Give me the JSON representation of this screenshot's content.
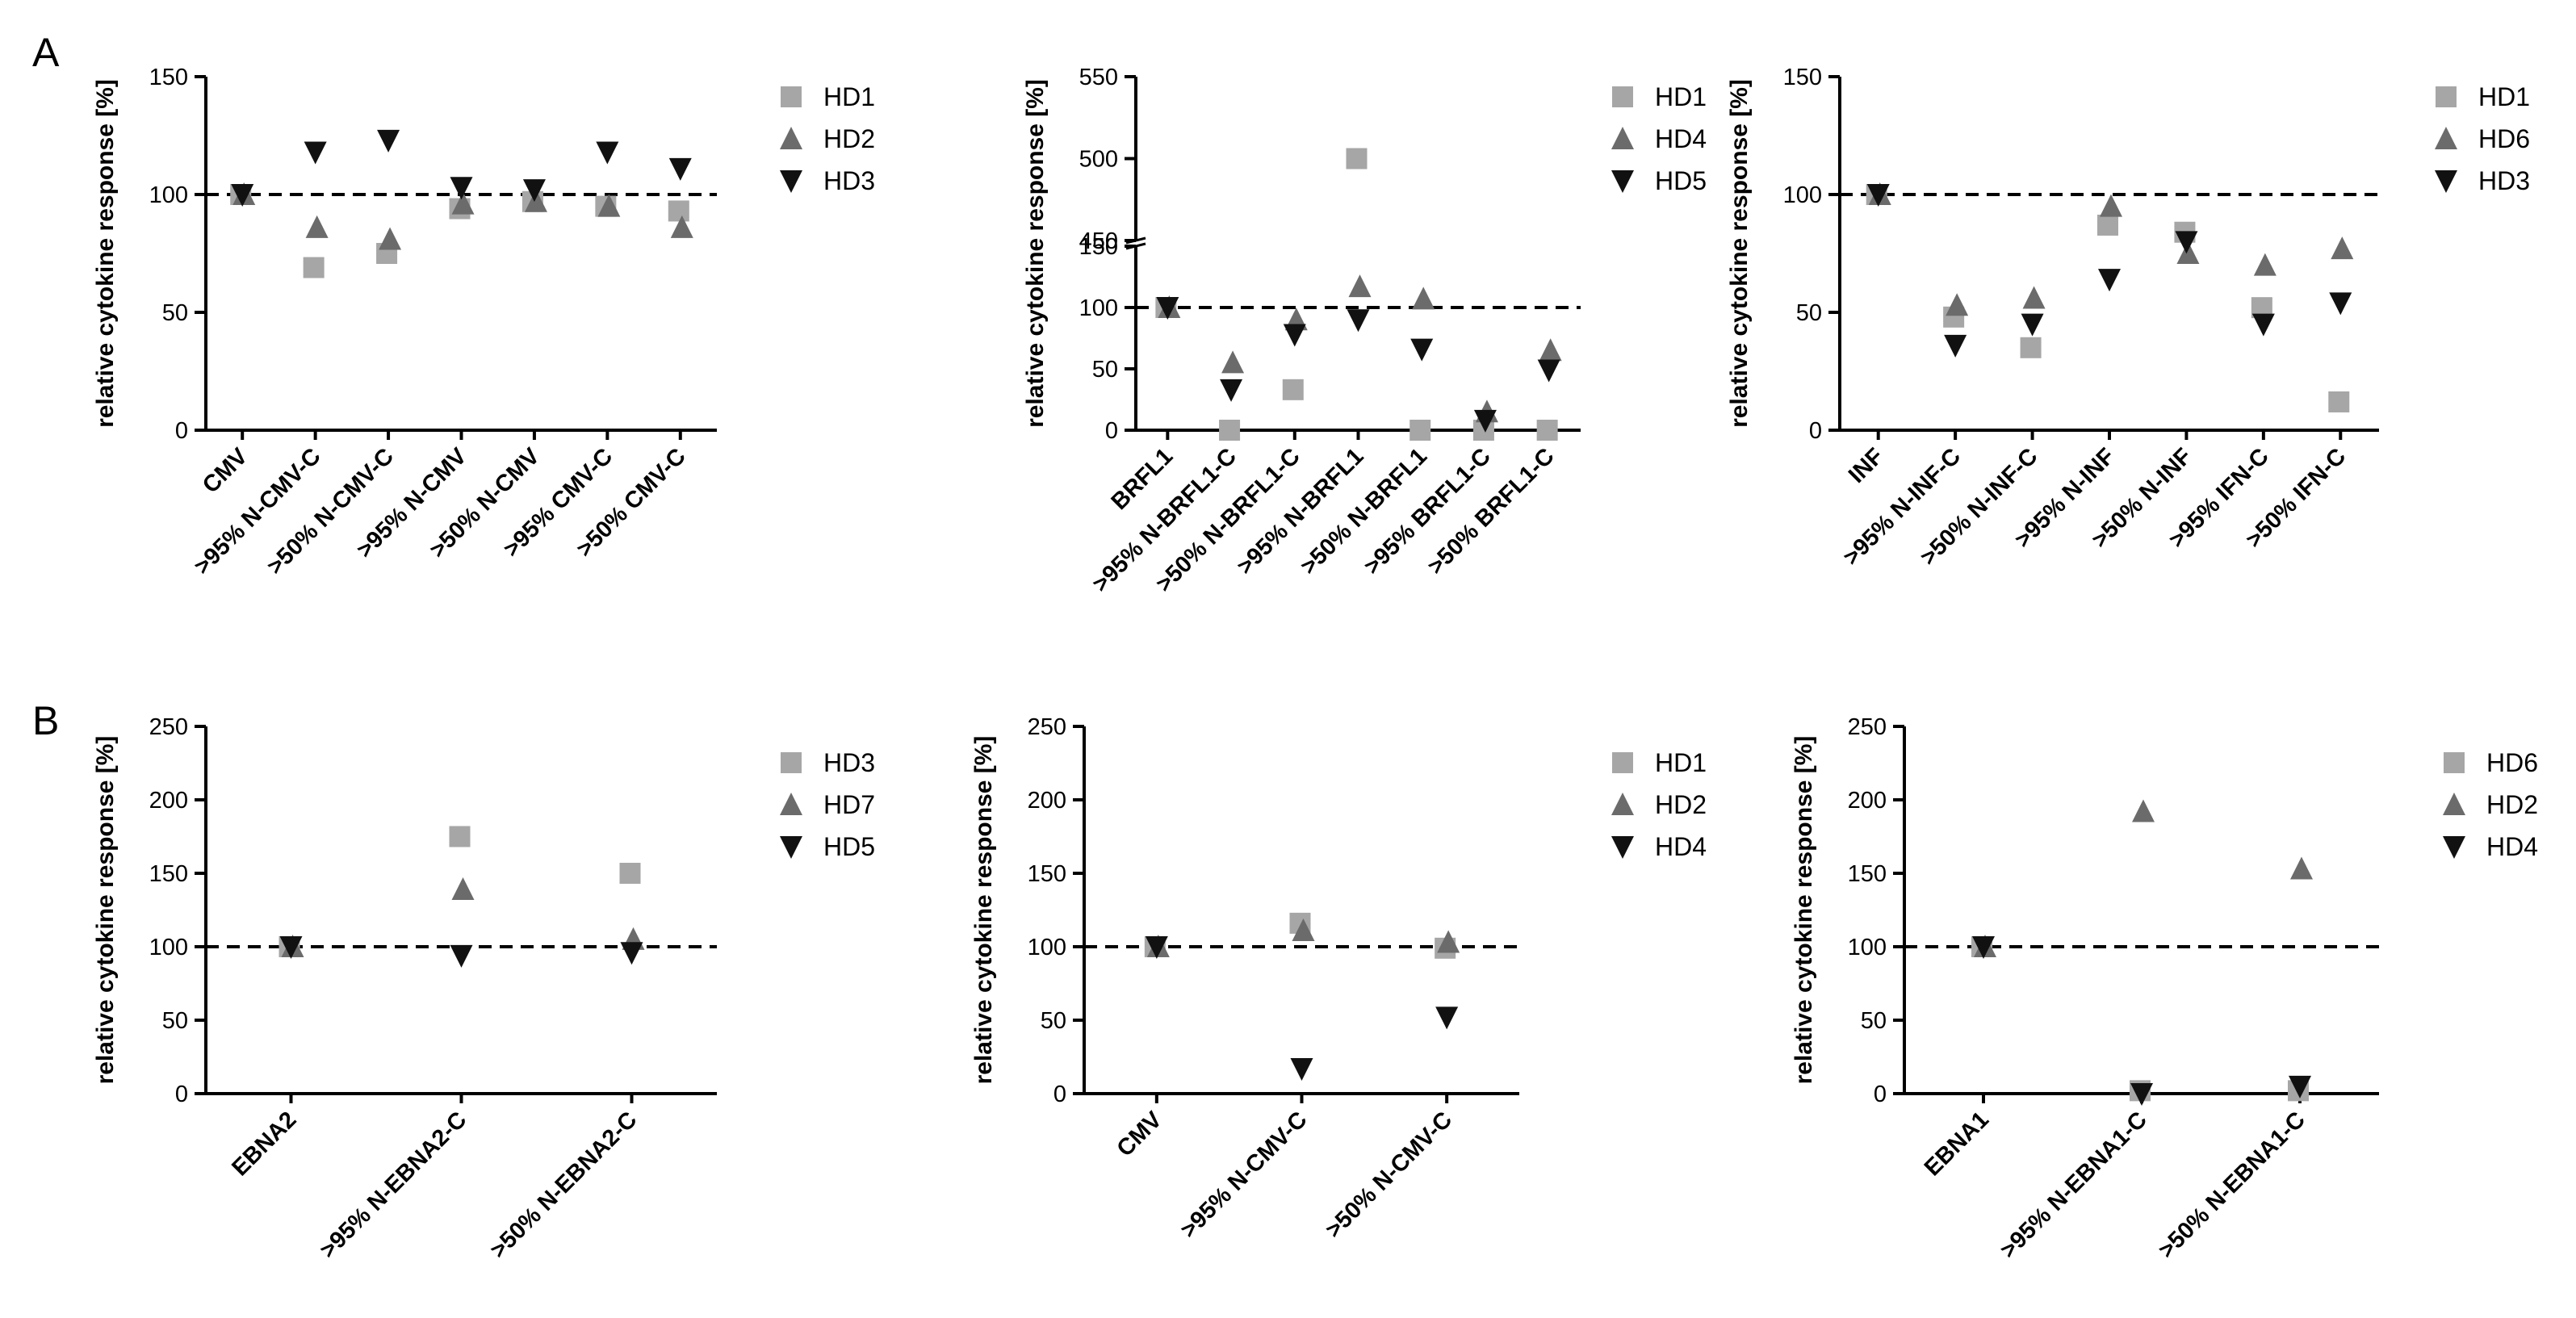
{
  "panel_labels": [
    "A",
    "B"
  ],
  "colors": {
    "light_gray": "#a6a6a6",
    "mid_gray": "#6b6b6b",
    "black": "#111111"
  },
  "chart_data": [
    {
      "type": "scatter",
      "panel": "A",
      "ylabel": "relative cytokine response [%]",
      "ylim": [
        0,
        150
      ],
      "yticks": [
        0,
        50,
        100,
        150
      ],
      "reference_line": 100,
      "categories": [
        "CMV",
        ">95% N-CMV-C",
        ">50% N-CMV-C",
        ">95% N-CMV",
        ">50% N-CMV",
        ">95% CMV-C",
        ">50% CMV-C"
      ],
      "series": [
        {
          "name": "HD1",
          "marker": "square",
          "color": "#a6a6a6",
          "values": [
            100,
            69,
            75,
            94,
            97,
            95,
            93
          ]
        },
        {
          "name": "HD2",
          "marker": "triangle-up",
          "color": "#6b6b6b",
          "values": [
            100,
            86,
            81,
            96,
            97,
            95,
            86
          ]
        },
        {
          "name": "HD3",
          "marker": "triangle-down",
          "color": "#111111",
          "values": [
            100,
            118,
            123,
            103,
            102,
            118,
            111
          ]
        }
      ]
    },
    {
      "type": "scatter",
      "panel": "A",
      "ylabel": "relative cytokine response [%]",
      "ylim": [
        0,
        550
      ],
      "broken_axis": {
        "lower": [
          0,
          150
        ],
        "upper": [
          450,
          550
        ]
      },
      "yticks_lower": [
        0,
        50,
        100,
        150
      ],
      "yticks_upper": [
        450,
        500,
        550
      ],
      "reference_line": 100,
      "categories": [
        "BRFL1",
        ">95% N-BRFL1-C",
        ">50% N-BRFL1-C",
        ">95% N-BRFL1",
        ">50% N-BRFL1",
        ">95% BRFL1-C",
        ">50% BRFL1-C"
      ],
      "series": [
        {
          "name": "HD1",
          "marker": "square",
          "color": "#a6a6a6",
          "values": [
            100,
            0,
            33,
            500,
            0,
            0,
            0
          ]
        },
        {
          "name": "HD4",
          "marker": "triangle-up",
          "color": "#6b6b6b",
          "values": [
            100,
            55,
            90,
            117,
            107,
            15,
            65
          ]
        },
        {
          "name": "HD5",
          "marker": "triangle-down",
          "color": "#111111",
          "values": [
            100,
            33,
            78,
            90,
            66,
            8,
            49
          ]
        }
      ]
    },
    {
      "type": "scatter",
      "panel": "A",
      "ylabel": "relative cytokine response [%]",
      "ylim": [
        0,
        150
      ],
      "yticks": [
        0,
        50,
        100,
        150
      ],
      "reference_line": 100,
      "categories": [
        "INF",
        ">95% N-INF-C",
        ">50% N-INF-C",
        ">95% N-INF",
        ">50% N-INF",
        ">95% IFN-C",
        ">50% IFN-C"
      ],
      "series": [
        {
          "name": "HD1",
          "marker": "square",
          "color": "#a6a6a6",
          "values": [
            100,
            48,
            35,
            87,
            84,
            52,
            12
          ]
        },
        {
          "name": "HD6",
          "marker": "triangle-up",
          "color": "#6b6b6b",
          "values": [
            100,
            53,
            56,
            95,
            75,
            70,
            77
          ]
        },
        {
          "name": "HD3",
          "marker": "triangle-down",
          "color": "#111111",
          "values": [
            100,
            36,
            45,
            64,
            80,
            45,
            54
          ]
        }
      ]
    },
    {
      "type": "scatter",
      "panel": "B",
      "ylabel": "relative cytokine response [%]",
      "ylim": [
        0,
        250
      ],
      "yticks": [
        0,
        50,
        100,
        150,
        200,
        250
      ],
      "reference_line": 100,
      "categories": [
        "EBNA2",
        ">95% N-EBNA2-C",
        ">50% N-EBNA2-C"
      ],
      "series": [
        {
          "name": "HD3",
          "marker": "square",
          "color": "#a6a6a6",
          "values": [
            100,
            175,
            150
          ]
        },
        {
          "name": "HD7",
          "marker": "triangle-up",
          "color": "#6b6b6b",
          "values": [
            100,
            139,
            105
          ]
        },
        {
          "name": "HD5",
          "marker": "triangle-down",
          "color": "#111111",
          "values": [
            100,
            94,
            96
          ]
        }
      ]
    },
    {
      "type": "scatter",
      "panel": "B",
      "ylabel": "relative cytokine response [%]",
      "ylim": [
        0,
        250
      ],
      "yticks": [
        0,
        50,
        100,
        150,
        200,
        250
      ],
      "reference_line": 100,
      "categories": [
        "CMV",
        ">95% N-CMV-C",
        ">50% N-CMV-C"
      ],
      "series": [
        {
          "name": "HD1",
          "marker": "square",
          "color": "#a6a6a6",
          "values": [
            100,
            116,
            99
          ]
        },
        {
          "name": "HD2",
          "marker": "triangle-up",
          "color": "#6b6b6b",
          "values": [
            100,
            111,
            103
          ]
        },
        {
          "name": "HD4",
          "marker": "triangle-down",
          "color": "#111111",
          "values": [
            100,
            17,
            52
          ]
        }
      ]
    },
    {
      "type": "scatter",
      "panel": "B",
      "ylabel": "relative cytokine response [%]",
      "ylim": [
        0,
        250
      ],
      "yticks": [
        0,
        50,
        100,
        150,
        200,
        250
      ],
      "reference_line": 100,
      "categories": [
        "EBNA1",
        ">95% N-EBNA1-C",
        ">50% N-EBNA1-C"
      ],
      "series": [
        {
          "name": "HD6",
          "marker": "square",
          "color": "#a6a6a6",
          "values": [
            100,
            2,
            2
          ]
        },
        {
          "name": "HD2",
          "marker": "triangle-up",
          "color": "#6b6b6b",
          "values": [
            100,
            192,
            153
          ]
        },
        {
          "name": "HD4",
          "marker": "triangle-down",
          "color": "#111111",
          "values": [
            100,
            0,
            5
          ]
        }
      ]
    }
  ]
}
